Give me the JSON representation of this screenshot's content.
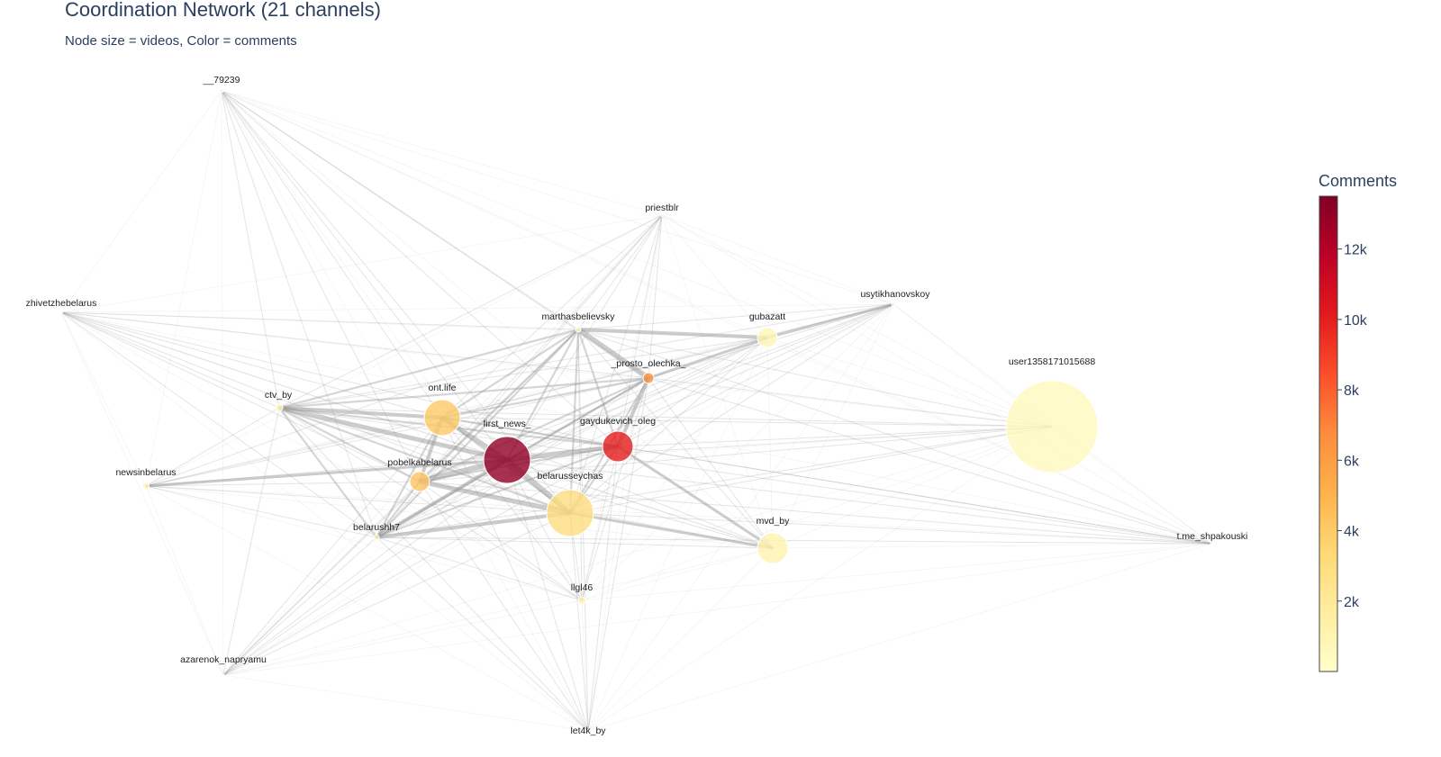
{
  "title": "Coordination Network (21 channels)",
  "subtitle": "Node size = videos, Color = comments",
  "colorbar": {
    "title": "Comments",
    "ticks": [
      "2k",
      "4k",
      "6k",
      "8k",
      "10k",
      "12k"
    ],
    "stops": [
      "#ffffcc",
      "#ffeda0",
      "#fed976",
      "#feb24c",
      "#fd8d3c",
      "#fc4e2a",
      "#e31a1c",
      "#bd0026",
      "#800026"
    ]
  },
  "chart_data": {
    "type": "network",
    "nodes": [
      {
        "name": "__79239",
        "comments": 100
      },
      {
        "name": "priestblr",
        "comments": 50
      },
      {
        "name": "zhivetzhebelarus",
        "comments": 100
      },
      {
        "name": "usytikhanovskoy",
        "comments": 150
      },
      {
        "name": "marthasbelievsky",
        "comments": 300
      },
      {
        "name": "gubazatt",
        "comments": 800
      },
      {
        "name": "_prosto_olechka_",
        "comments": 6500
      },
      {
        "name": "user1358171015688",
        "comments": 600
      },
      {
        "name": "ctv_by",
        "comments": 1000
      },
      {
        "name": "ont.life",
        "comments": 4000
      },
      {
        "name": "first_news_",
        "comments": 13000
      },
      {
        "name": "gaydukevich_oleg",
        "comments": 10000
      },
      {
        "name": "newsinbelarus",
        "comments": 1000
      },
      {
        "name": "pobelkabelarus",
        "comments": 4200
      },
      {
        "name": "belarusseychas",
        "comments": 3000
      },
      {
        "name": "belarushh7",
        "comments": 1300
      },
      {
        "name": "mvd_by",
        "comments": 1100
      },
      {
        "name": "t.me_shpakouski",
        "comments": 50
      },
      {
        "name": "llgl46",
        "comments": 1400
      },
      {
        "name": "azarenok_napryamu",
        "comments": 100
      },
      {
        "name": "let4k_by",
        "comments": 50
      }
    ]
  }
}
